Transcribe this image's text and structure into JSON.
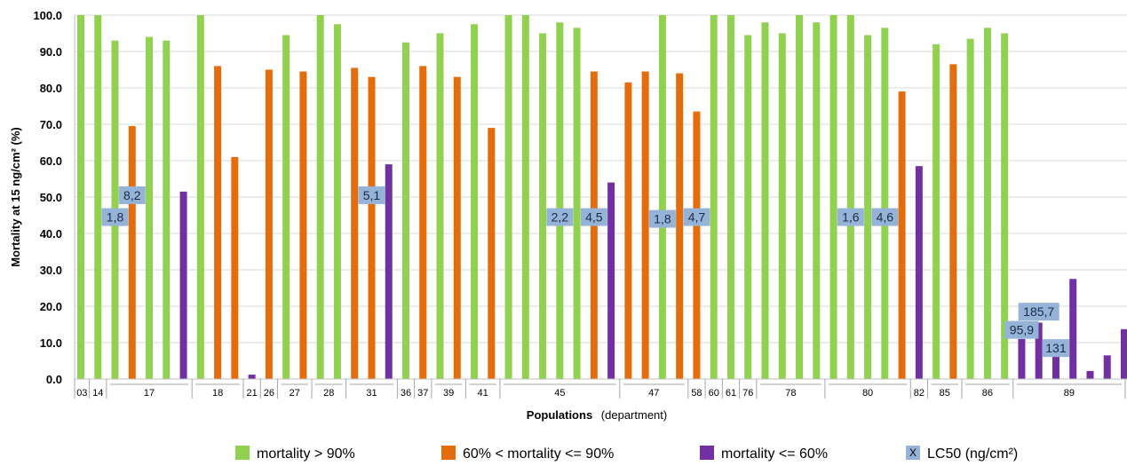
{
  "chart_data": {
    "type": "bar",
    "ylabel": "Mortality at 15 ng/cm² (%)",
    "xlabel_bold": "Populations",
    "xlabel_rest": "(department)",
    "ylim": [
      0,
      100
    ],
    "yticks": [
      "0.0",
      "10.0",
      "20.0",
      "30.0",
      "40.0",
      "50.0",
      "60.0",
      "70.0",
      "80.0",
      "90.0",
      "100.0"
    ],
    "grid": "horizontal",
    "legend_position": "bottom",
    "series": [
      {
        "key": "high",
        "name": "mortality > 90%",
        "color": "#92d050"
      },
      {
        "key": "mid",
        "name": "60% < mortality <= 90%",
        "color": "#e46c0a"
      },
      {
        "key": "low",
        "name": "mortality <= 60%",
        "color": "#7030a0"
      },
      {
        "key": "lc50",
        "name": "LC50 (ng/cm²)",
        "color": "#95b3d7",
        "marker": "X"
      }
    ],
    "bars": [
      {
        "s": "high",
        "v": 100
      },
      {
        "s": "high",
        "v": 100
      },
      {
        "s": "high",
        "v": 93
      },
      {
        "s": "mid",
        "v": 69.5
      },
      {
        "s": "high",
        "v": 94
      },
      {
        "s": "high",
        "v": 93
      },
      {
        "s": "low",
        "v": 51.5
      },
      {
        "s": "high",
        "v": 100
      },
      {
        "s": "mid",
        "v": 86
      },
      {
        "s": "mid",
        "v": 61
      },
      {
        "s": "low",
        "v": 1.2
      },
      {
        "s": "mid",
        "v": 85
      },
      {
        "s": "high",
        "v": 94.5
      },
      {
        "s": "mid",
        "v": 84.5
      },
      {
        "s": "high",
        "v": 100
      },
      {
        "s": "high",
        "v": 97.5
      },
      {
        "s": "mid",
        "v": 85.5
      },
      {
        "s": "mid",
        "v": 83
      },
      {
        "s": "low",
        "v": 59
      },
      {
        "s": "high",
        "v": 92.5
      },
      {
        "s": "mid",
        "v": 86
      },
      {
        "s": "high",
        "v": 95
      },
      {
        "s": "mid",
        "v": 83
      },
      {
        "s": "high",
        "v": 97.5
      },
      {
        "s": "mid",
        "v": 69
      },
      {
        "s": "high",
        "v": 100
      },
      {
        "s": "high",
        "v": 100
      },
      {
        "s": "high",
        "v": 95
      },
      {
        "s": "high",
        "v": 98
      },
      {
        "s": "high",
        "v": 96.5
      },
      {
        "s": "mid",
        "v": 84.5
      },
      {
        "s": "low",
        "v": 54
      },
      {
        "s": "mid",
        "v": 81.5
      },
      {
        "s": "mid",
        "v": 84.5
      },
      {
        "s": "high",
        "v": 100
      },
      {
        "s": "mid",
        "v": 84
      },
      {
        "s": "mid",
        "v": 73.5
      },
      {
        "s": "high",
        "v": 100
      },
      {
        "s": "high",
        "v": 100
      },
      {
        "s": "high",
        "v": 94.5
      },
      {
        "s": "high",
        "v": 98
      },
      {
        "s": "high",
        "v": 95
      },
      {
        "s": "high",
        "v": 100
      },
      {
        "s": "high",
        "v": 98
      },
      {
        "s": "high",
        "v": 100
      },
      {
        "s": "high",
        "v": 100
      },
      {
        "s": "high",
        "v": 94.5
      },
      {
        "s": "high",
        "v": 96.5
      },
      {
        "s": "mid",
        "v": 79
      },
      {
        "s": "low",
        "v": 58.5
      },
      {
        "s": "high",
        "v": 92
      },
      {
        "s": "mid",
        "v": 86.5
      },
      {
        "s": "high",
        "v": 93.5
      },
      {
        "s": "high",
        "v": 96.5
      },
      {
        "s": "high",
        "v": 95
      },
      {
        "s": "low",
        "v": 11
      },
      {
        "s": "low",
        "v": 15.5
      },
      {
        "s": "low",
        "v": 7.5
      },
      {
        "s": "low",
        "v": 27.5
      },
      {
        "s": "low",
        "v": 2.2
      },
      {
        "s": "low",
        "v": 6.5
      },
      {
        "s": "low",
        "v": 13.7
      }
    ],
    "lc50_labels": [
      {
        "text": "1,8",
        "bar": 2,
        "y": 44.5
      },
      {
        "text": "8,2",
        "bar": 3,
        "y": 50.5
      },
      {
        "text": "5,1",
        "bar": 17,
        "y": 50.5
      },
      {
        "text": "2,2",
        "bar": 28,
        "y": 44.5
      },
      {
        "text": "4,5",
        "bar": 30,
        "y": 44.5
      },
      {
        "text": "1,8",
        "bar": 34,
        "y": 44
      },
      {
        "text": "4,7",
        "bar": 36,
        "y": 44.5
      },
      {
        "text": "1,6",
        "bar": 45,
        "y": 44.5
      },
      {
        "text": "4,6",
        "bar": 47,
        "y": 44.5
      },
      {
        "text": "95,9",
        "bar": 55,
        "y": 13.5
      },
      {
        "text": "185,7",
        "bar": 56,
        "y": 18.5
      },
      {
        "text": "131",
        "bar": 57,
        "y": 8.5
      }
    ],
    "departments": [
      {
        "label": "03",
        "from": 0,
        "to": 0
      },
      {
        "label": "14",
        "from": 1,
        "to": 1
      },
      {
        "label": "17",
        "from": 2,
        "to": 6
      },
      {
        "label": "18",
        "from": 7,
        "to": 9
      },
      {
        "label": "21",
        "from": 10,
        "to": 10
      },
      {
        "label": "26",
        "from": 11,
        "to": 11
      },
      {
        "label": "27",
        "from": 12,
        "to": 13
      },
      {
        "label": "28",
        "from": 14,
        "to": 15
      },
      {
        "label": "31",
        "from": 16,
        "to": 18
      },
      {
        "label": "36",
        "from": 19,
        "to": 19
      },
      {
        "label": "37",
        "from": 20,
        "to": 20
      },
      {
        "label": "39",
        "from": 21,
        "to": 22
      },
      {
        "label": "41",
        "from": 23,
        "to": 24
      },
      {
        "label": "45",
        "from": 25,
        "to": 31
      },
      {
        "label": "47",
        "from": 32,
        "to": 35
      },
      {
        "label": "58",
        "from": 36,
        "to": 36
      },
      {
        "label": "60",
        "from": 37,
        "to": 37
      },
      {
        "label": "61",
        "from": 38,
        "to": 38
      },
      {
        "label": "76",
        "from": 39,
        "to": 39
      },
      {
        "label": "78",
        "from": 40,
        "to": 43
      },
      {
        "label": "80",
        "from": 44,
        "to": 48
      },
      {
        "label": "82",
        "from": 49,
        "to": 49
      },
      {
        "label": "85",
        "from": 50,
        "to": 51
      },
      {
        "label": "86",
        "from": 52,
        "to": 54
      },
      {
        "label": "89",
        "from": 55,
        "to": 61
      }
    ]
  }
}
